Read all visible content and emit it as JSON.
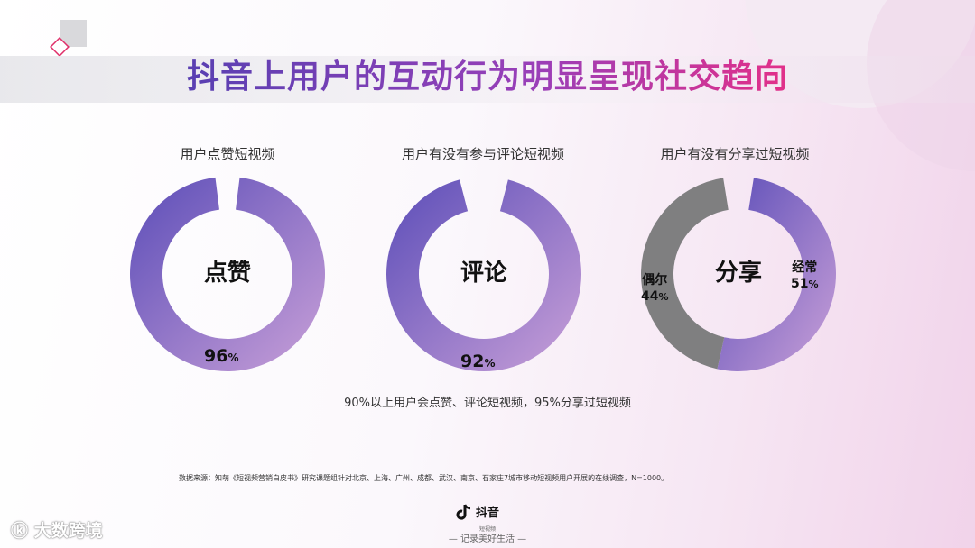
{
  "page": {
    "title": "抖音上用户的互动行为明显呈现社交趋向",
    "summary": "90%以上用户会点赞、评论短视频，95%分享过短视频",
    "source": "数据来源：知萌《短视频营销白皮书》研究课题组针对北京、上海、广州、成都、武汉、南京、石家庄7城市移动短视频用户开展的在线调查，N=1000。",
    "brand_name": "抖音",
    "brand_sub": "短视频",
    "slogan": "— 记录美好生活 —",
    "watermark": "大数跨境"
  },
  "colors": {
    "accent_start": "#5b4db8",
    "accent_end": "#c9a0d8",
    "gray_segment": "#7f7f80",
    "title_gradient": [
      "#5a3fb2",
      "#9a3fb8",
      "#e0308a"
    ]
  },
  "chart_data": [
    {
      "type": "pie",
      "title": "用户点赞短视频",
      "center_label": "点赞",
      "slices": [
        {
          "name": "",
          "value": 96,
          "display": "96",
          "unit": "%"
        }
      ],
      "remainder": 4
    },
    {
      "type": "pie",
      "title": "用户有没有参与评论短视频",
      "center_label": "评论",
      "slices": [
        {
          "name": "",
          "value": 92,
          "display": "92",
          "unit": "%"
        }
      ],
      "remainder": 8
    },
    {
      "type": "pie",
      "title": "用户有没有分享过短视频",
      "center_label": "分享",
      "slices": [
        {
          "name": "经常",
          "value": 51,
          "display": "51",
          "unit": "%"
        },
        {
          "name": "偶尔",
          "value": 44,
          "display": "44",
          "unit": "%"
        }
      ],
      "remainder": 5
    }
  ]
}
